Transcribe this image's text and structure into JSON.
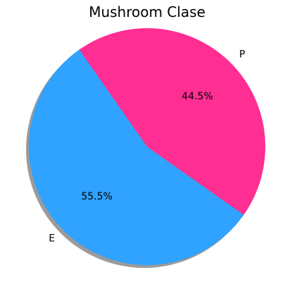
{
  "chart_data": {
    "type": "pie",
    "title": "Mushroom Clase",
    "slices": [
      {
        "label": "E",
        "value": 55.5,
        "pct_label": "55.5%",
        "color": "#30a2ff"
      },
      {
        "label": "P",
        "value": 44.5,
        "pct_label": "44.5%",
        "color": "#ff2e93"
      }
    ],
    "start_angle_deg": 125,
    "direction": "counterclockwise",
    "shadow": true
  }
}
